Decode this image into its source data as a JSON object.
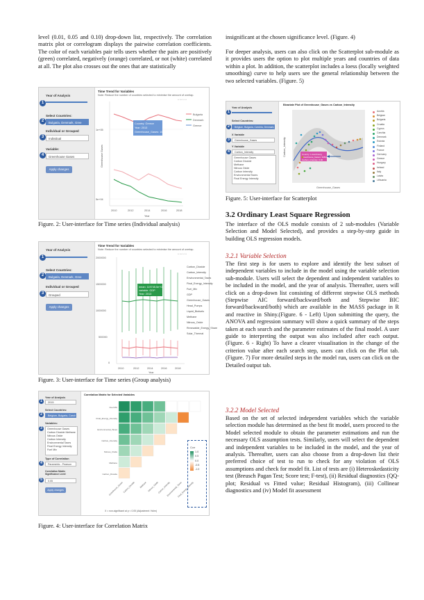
{
  "left": {
    "intro": "level (0.01, 0.05 and 0.10) drop-down list, respectively. The correlation matrix plot or correlogram displays the pairwise correlation coefficients. The color of each variables pair tells users whether the pairs are positively (green) correlated, negatively (orange) correlated, or not (white) correlated at all. The plot also crosses out the ones that are statistically",
    "fig2_caption": "Figure. 2: User-interface for Time series (Individual analysis)",
    "fig3_caption": "Figure. 3: User-interface for Time series (Group analysis)",
    "fig4_caption": "Figure. 4: User-interface for Correlation Matrix"
  },
  "right": {
    "p1": "insignificant at the chosen significance level. (Figure. 4)",
    "p2": "For deeper analysis, users can also click on the Scatterplot sub-module as it provides users the option to plot multiple years and countries of data within a plot. In addition, the scatterplot includes a loess (locally weighted smoothing) curve to help users see the general relationship between the two selected variables. (Figure. 5)",
    "fig5_caption": "Figure. 5: User-interface for Scatterplot",
    "sec32_title": "3.2 Ordinary Least Square Regression",
    "sec32_body": "The interface of the OLS module consists of 2 sub-modules (Variable Selection and Model Selected), and provides a step-by-step guide in building OLS regression models.",
    "sec321_title": "3.2.1 Variable Selection",
    "sec321_body": "The first step is for users to explore and identify the best subset of independent variables to include in the model using the variable selection sub-module. Users will select the dependent and independent variables to be included in the model, and the year of analysis. Thereafter, users will click on a drop-down list consisting of different stepwise OLS methods (Stepwise AIC forward/backward/both and Stepwise BIC forward/backward/both) which are available in the MASS package in R and reactive in Shiny.(Figure. 6 - Left) Upon submitting the query, the ANOVA and regression summary will show a quick summary of the steps taken at each search and the parameter estimates of the final model. A user guide to interpreting the output was also included after each output. (Figure. 6 - Right) To have a clearer visualisation in the change of the criterion value after each search step, users can click on the Plot tab. (Figure. 7) For more detailed steps in the model run, users can click on the Detailed output tab.",
    "sec322_title": "3.2.2 Model Selected",
    "sec322_body": "Based on the set of selected independent variables which the variable selection module has determined as the best fit model, users proceed to the Model selected module to obtain the parameter estimations and run the necessary OLS assumption tests. Similarly, users will select the dependent and independent variables to be included in the model, and the year of analysis. Thereafter, users can also choose from a drop-down list their preferred choice of test to run to check for any violation of OLS assumptions and check for model fit. List of tests are (i) Heteroskedasticity test (Breusch Pagan Test; Score test; F-test), (ii) Residual diagnostics (QQ-plot; Residual vs Fitted value; Residual Histogram), (iii) Collinear diagnostics and (iv) Model fit assessment"
  },
  "fig2": {
    "year_label": "Year of Analysis",
    "countries_label": "Select Countries:",
    "countries_value": "Bulgaria, Denmark, Gree",
    "group_label": "Individual or Grouped",
    "group_value": "Individual",
    "variable_label": "Variable:",
    "variable_value": "Greenhouse Gases",
    "apply": "Apply changes",
    "title": "Time Trend for Variables",
    "note": "Note: Reduce the number of countries selected to minimise the amount of overlap.",
    "ylabel": "Greenhouse Gases",
    "xlabel": "Year",
    "legend": [
      "Bulgaria",
      "Denmark",
      "Greece"
    ],
    "tooltip": "Country: Greece\nYear: 2013\nGreenhouse_Gases: 102739.6",
    "xticks": [
      "2010",
      "2012",
      "2014",
      "2016",
      "2018"
    ],
    "yticks": [
      "1e+05",
      "5e+04"
    ]
  },
  "fig3": {
    "year_label": "Year of Analysis",
    "countries_label": "Select Countries:",
    "countries_value": "Bulgaria, Denmark, Gree",
    "group_label": "Individual or Grouped",
    "group_value": "Grouped",
    "apply": "Apply changes",
    "title": "Time Trend for Variables",
    "note": "Note: Reduce the number of countries selected to minimise the amount of overlap.",
    "xlabel": "Year",
    "tooltip": "mean: 119745.5e+04\nvariable: GDP\nYear: 2013",
    "legend": [
      "Carbon_Dioxide",
      "Carbon_Intensity",
      "Environmental_Taxes",
      "Final_Energy_Intensity",
      "Fuel_Mix",
      "GDP",
      "Greenhouse_Gases",
      "Head_Pumps",
      "Liquid_Biofuels",
      "Methane",
      "Nitrous_Oxide",
      "Renewable_Energy_Share",
      "Solar_Thermal"
    ],
    "xticks": [
      "2010",
      "2012",
      "2014",
      "2016",
      "2018"
    ],
    "yticks": [
      "2000000",
      "1500000",
      "1000000",
      "500000",
      "0"
    ]
  },
  "fig4": {
    "year_label": "Year of Analysis",
    "year_value": "2015",
    "countries_label": "Select Countries:",
    "countries_value": "Belgium, Bulgaria, Czech",
    "variables_label": "Variables:",
    "variables": [
      "Greenhouse Gases",
      "Carbon Dioxide  Methane",
      "Nitrous Oxide",
      "Carbon Intensity",
      "Environmental Taxes",
      "Final Energy Intensity",
      "Fuel Mix"
    ],
    "corr_type_label": "Type of Correlation",
    "corr_type_value": "Parametric - Pearson",
    "sig_label": "Correlation Matrix Significance Level",
    "sig_value": "0.05",
    "apply": "Apply changes",
    "title": "Correlation Matrix for Selected Variables",
    "footnote": "X = non-significant at p < 0.05 (Adjustment: Holm)",
    "rows": [
      "Fuel Mix",
      "Final_Energy_Intensity",
      "Environmental_Taxes",
      "Carbon_Intensity",
      "Nitrous_Oxide",
      "Methane",
      "Carbon_Dioxide"
    ],
    "cols": [
      "Greenhouse_Gases",
      "Carbon_Dioxide",
      "Methane",
      "Nitrous_Oxide",
      "Carbon_Intensity",
      "Environmental_Taxes",
      "Final_Energy_Intensity"
    ],
    "legend_title": "Corr",
    "legend_values": [
      "1.0",
      "0.5",
      "0.0",
      "-0.5",
      "-1.0"
    ]
  },
  "fig5": {
    "year_label": "Year of Analysis",
    "countries_label": "Select Countries:",
    "countries_value": "Belgium, Bulgaria, Czechia, Denmark, German",
    "x_label": "X Variable",
    "x_value": "Greenhouse_Gases",
    "y_label": "Y Variable",
    "y_value": "Carbon_Intensity",
    "y_options": [
      "Greenhouse Gases",
      "Carbon Dioxide",
      "Methane",
      "Nitrous Oxide",
      "Carbon Intensity",
      "Environmental Taxes",
      "Final Energy Intensity"
    ],
    "title": "Bivariate Plot of Greenhouse_Gases vs Carbon_Intensity",
    "xlabel": "Greenhouse_Gases",
    "ylabel": "Carbon_Intensity",
    "tooltip": "Country: Luxembourg\nGreenhouse_Gases: 11843.88\nCarbon_Intensity: 0.00",
    "legend": [
      "Austria",
      "Belgium",
      "Bulgaria",
      "Croatia",
      "Cyprus",
      "Czechia",
      "Denmark",
      "Estonia",
      "Finland",
      "France",
      "Germany",
      "Greece",
      "Hungary",
      "Ireland",
      "Italy",
      "Latvia",
      "Lithuania"
    ]
  },
  "colors": {
    "bulgaria": "#e8707a",
    "denmark": "#2a9a4a",
    "greece": "#5e8ed1",
    "corr_pos": "#1f8f5f",
    "corr_neg": "#f08a3a",
    "accent": "#2c5aa0"
  }
}
